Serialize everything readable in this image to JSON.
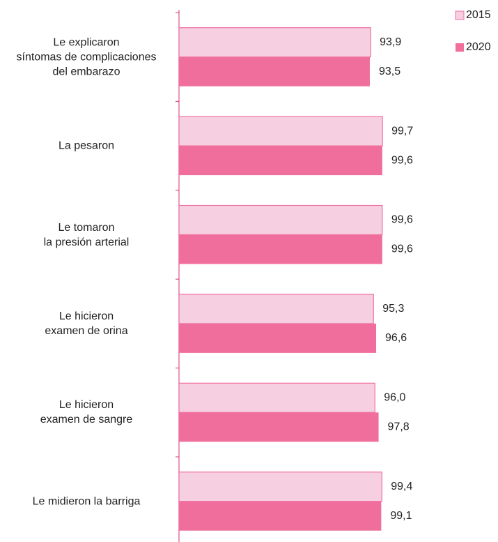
{
  "chart_data": {
    "type": "barh",
    "categories": [
      "Le explicaron\nsíntomas de complicaciones\ndel embarazo",
      "La pesaron",
      "Le tomaron\nla presión arterial",
      "Le hicieron\nexamen de orina",
      "Le hicieron\nexamen de sangre",
      "Le midieron la barriga"
    ],
    "series": [
      {
        "name": "2015",
        "color": "#f6d0e1",
        "values": [
          93.9,
          99.7,
          99.6,
          95.3,
          96.0,
          99.4
        ],
        "value_labels": [
          "93,9",
          "99,7",
          "99,6",
          "95,3",
          "96,0",
          "99,4"
        ]
      },
      {
        "name": "2020",
        "color": "#f06e9c",
        "values": [
          93.5,
          99.6,
          99.6,
          96.6,
          97.8,
          99.1
        ],
        "value_labels": [
          "93,5",
          "99,6",
          "99,6",
          "96,6",
          "97,8",
          "99,1"
        ]
      }
    ],
    "xlim": [
      0,
      100
    ]
  }
}
